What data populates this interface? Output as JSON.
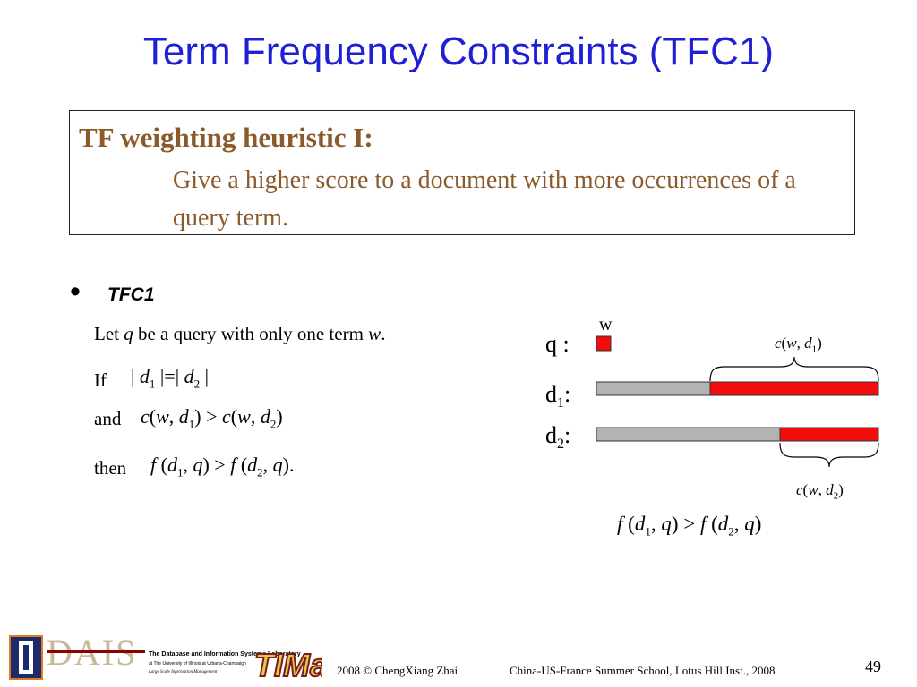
{
  "slide": {
    "title": "Term Frequency Constraints (TFC1)",
    "page_number": "49"
  },
  "heuristic": {
    "heading": "TF weighting heuristic I:",
    "body": "Give a higher score to a document with more occurrences of a query term."
  },
  "bullet": {
    "label": "TFC1",
    "let_line": {
      "pre": "Let",
      "q": "q",
      "mid": "be a query with only one term",
      "w": "w",
      "end": "."
    },
    "if_word": "If",
    "and_word": "and",
    "then_word": "then"
  },
  "diagram": {
    "w_label": "w",
    "q_label": "q :",
    "d1_label": "d",
    "d1_sub": "1",
    "d2_label": "d",
    "d2_sub": "2",
    "colon": ":",
    "colors": {
      "term_red": "#f20d0d",
      "doc_gray": "#b3b3b3"
    },
    "conclusion": "f(d1, q) > f(d2, q)"
  },
  "footer": {
    "lab_name": "The Database and Information Systems Laboratory",
    "lab_affiliation": "at The University of Illinois at Urbana-Champaign",
    "lab_tagline": "Large Scale Information Management",
    "copyright": "2008  © ChengXiang Zhai",
    "event": "China-US-France Summer School, Lotus Hill Inst., 2008"
  }
}
